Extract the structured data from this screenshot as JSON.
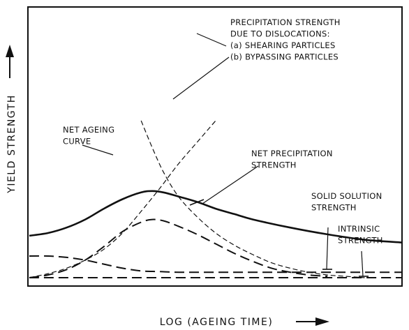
{
  "chart_data": {
    "type": "line",
    "xlabel": "LOG (AGEING TIME)",
    "ylabel": "YIELD STRENGTH",
    "xlim": [
      0,
      100
    ],
    "ylim": [
      0,
      100
    ],
    "grid": false,
    "series": [
      {
        "key": "shearing",
        "style": "short-dash",
        "x": [
          0,
          5,
          10,
          15,
          20,
          25,
          30,
          35,
          40,
          45,
          50
        ],
        "y": [
          0,
          3,
          7,
          13,
          21,
          33,
          49,
          66,
          84,
          100,
          116
        ]
      },
      {
        "key": "bypassing",
        "style": "short-dash",
        "x": [
          30,
          33,
          36,
          40,
          45,
          50,
          55,
          60,
          65,
          70,
          75,
          80,
          85,
          90
        ],
        "y": [
          116,
          96,
          78,
          60,
          45,
          33,
          24,
          17,
          11,
          7,
          4,
          2,
          1,
          0
        ]
      },
      {
        "key": "net-ageing",
        "style": "solid",
        "x": [
          0,
          5,
          10,
          15,
          20,
          25,
          30,
          33,
          36,
          40,
          45,
          50,
          55,
          60,
          70,
          80,
          90,
          100
        ],
        "y": [
          31,
          33,
          37,
          43,
          51,
          58,
          63,
          64,
          63,
          60,
          56,
          51,
          47,
          43,
          37,
          32,
          28,
          26
        ]
      },
      {
        "key": "net-precipitation",
        "style": "long-dash",
        "x": [
          0,
          5,
          10,
          15,
          20,
          25,
          30,
          33,
          36,
          40,
          45,
          50,
          55,
          60,
          65,
          70,
          75,
          80
        ],
        "y": [
          0,
          2,
          6,
          13,
          23,
          34,
          41,
          43,
          42,
          38,
          32,
          25,
          18,
          12,
          7,
          4,
          2,
          1
        ]
      },
      {
        "key": "solid-solution",
        "style": "long-dash",
        "x": [
          0,
          5,
          10,
          15,
          20,
          25,
          30,
          35,
          40,
          50,
          60,
          70,
          80,
          90,
          100
        ],
        "y": [
          16,
          16,
          15,
          13,
          10,
          7,
          5,
          4.5,
          4,
          4,
          4,
          4,
          4,
          4,
          4
        ]
      },
      {
        "key": "intrinsic",
        "style": "long-dash",
        "x": [
          0,
          100
        ],
        "y": [
          0,
          0
        ]
      }
    ],
    "annotations": [
      {
        "key": "precip",
        "lines": [
          "PRECIPITATION STRENGTH",
          "DUE TO DISLOCATIONS:",
          "(a) SHEARING PARTICLES",
          "(b) BYPASSING PARTICLES"
        ]
      },
      {
        "key": "ageing",
        "lines": [
          "NET AGEING",
          "CURVE"
        ]
      },
      {
        "key": "netprecip",
        "lines": [
          "NET PRECIPITATION",
          "STRENGTH"
        ]
      },
      {
        "key": "solid",
        "lines": [
          "SOLID SOLUTION",
          "STRENGTH"
        ]
      },
      {
        "key": "intrinsic",
        "lines": [
          "INTRINSIC",
          "STRENGTH"
        ]
      }
    ]
  },
  "colors": {
    "ink": "#111111",
    "background": "#ffffff"
  }
}
